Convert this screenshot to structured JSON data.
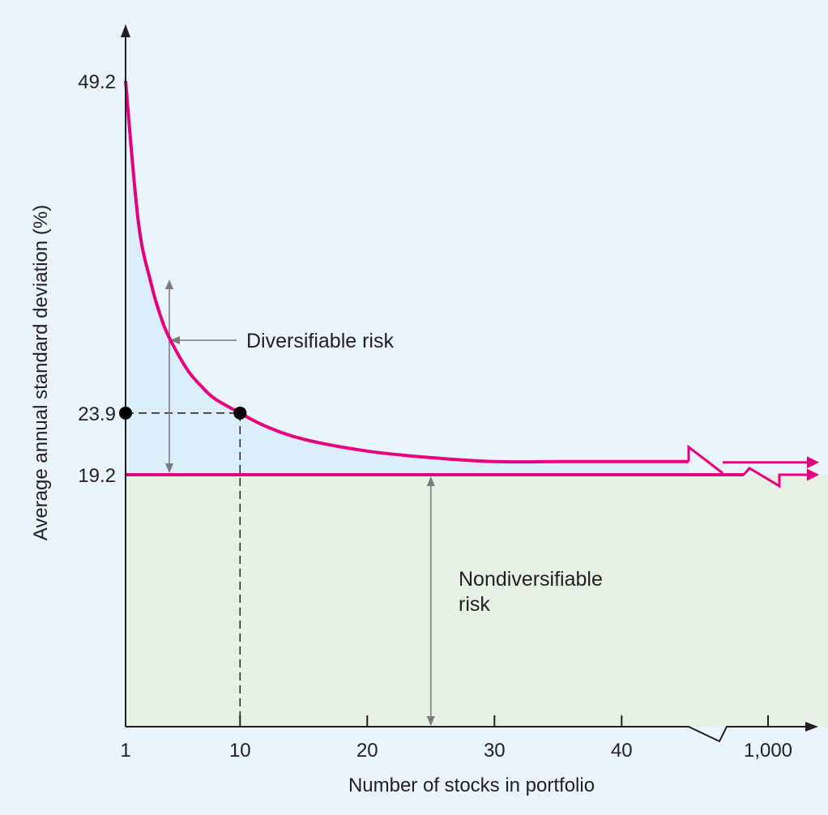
{
  "colors": {
    "panel_bg": "#e9f4fc",
    "diversifiable_fill": "#dbeefa",
    "nondiversifiable_fill": "#e6f1e5",
    "curve": "#e6007e",
    "axis": "#231f20",
    "guide": "#7a7a7a"
  },
  "chart_data": {
    "type": "line",
    "title": "",
    "xlabel": "Number of stocks in portfolio",
    "ylabel": "Average annual standard deviation (%)",
    "x_ticks": [
      "1",
      "10",
      "20",
      "30",
      "40",
      "1,000"
    ],
    "y_ticks": [
      "49.2",
      "23.9",
      "19.2"
    ],
    "xlim": [
      1,
      1000
    ],
    "ylim": [
      0,
      49.2
    ],
    "grid": false,
    "legend": "none",
    "axis_break": "x between 40 and 1,000",
    "series": [
      {
        "role": "total-risk-curve",
        "x": [
          1,
          2,
          3,
          4,
          5,
          6,
          7,
          8,
          10,
          12,
          15,
          20,
          25,
          30,
          35,
          40,
          1000
        ],
        "y": [
          49.2,
          38.5,
          33.8,
          30.6,
          28.6,
          27.0,
          25.9,
          25.0,
          23.9,
          22.9,
          21.9,
          21.0,
          20.5,
          20.2,
          20.2,
          20.2,
          19.3
        ]
      },
      {
        "role": "nondiversifiable-level",
        "x": [
          1,
          1000
        ],
        "y": [
          19.2,
          19.2
        ]
      }
    ],
    "highlight_points": [
      {
        "x": 10,
        "y": 23.9
      },
      {
        "x": 1,
        "y": 23.9
      }
    ],
    "annotations": {
      "diversifiable": "Diversifiable risk",
      "nondiversifiable_line1": "Nondiversifiable",
      "nondiversifiable_line2": "risk"
    }
  }
}
